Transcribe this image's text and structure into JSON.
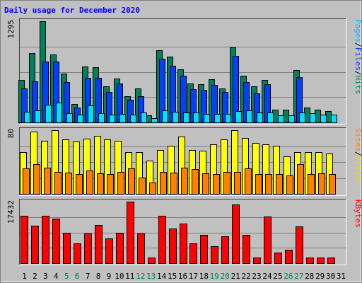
{
  "chart_data": {
    "type": "bar",
    "title": "Daily usage for December 2020",
    "days": [
      "1",
      "2",
      "3",
      "4",
      "5",
      "6",
      "7",
      "8",
      "9",
      "10",
      "11",
      "12",
      "13",
      "14",
      "15",
      "16",
      "17",
      "18",
      "19",
      "20",
      "21",
      "22",
      "23",
      "24",
      "25",
      "26",
      "27",
      "28",
      "29",
      "30",
      "31"
    ],
    "weekend_days": [
      "5",
      "6",
      "12",
      "13",
      "19",
      "20",
      "26",
      "27"
    ],
    "colors": {
      "hits": "#00805c",
      "files": "#0040ff",
      "pages": "#00e0ff",
      "visits": "#ffff00",
      "sites": "#ff8000",
      "kbytes": "#ff0000",
      "weekday_label": "#000000",
      "weekend_label": "#00805c",
      "title": "#0000ff"
    },
    "panels": [
      {
        "max_label": "1295",
        "ymax": 1295,
        "legend": [
          {
            "text": "Pages",
            "color": "#00c0ff"
          },
          {
            "text": "/",
            "color": "#000000"
          },
          {
            "text": "Files",
            "color": "#0040ff"
          },
          {
            "text": "/",
            "color": "#000000"
          },
          {
            "text": "Hits",
            "color": "#00805c"
          }
        ],
        "series": [
          {
            "name": "Hits",
            "key": "hits",
            "values": [
              543,
              885,
              1295,
              872,
              627,
              234,
              718,
              710,
              464,
              558,
              333,
              436,
              90,
              928,
              846,
              677,
              500,
              489,
              551,
              435,
              960,
              601,
              463,
              543,
              167,
              165,
              673,
              188,
              163,
              142,
              0
            ]
          },
          {
            "name": "Files",
            "key": "files",
            "values": [
              436,
              524,
              783,
              783,
              518,
              191,
              567,
              567,
              392,
              499,
              289,
              331,
              0,
              817,
              725,
              602,
              429,
              420,
              479,
              386,
              850,
              518,
              371,
              489,
              0,
              0,
              576,
              0,
              0,
              0,
              0
            ]
          },
          {
            "name": "Pages",
            "key": "pages",
            "values": [
              134,
              156,
              230,
              252,
              117,
              104,
              220,
              114,
              101,
              107,
              103,
              123,
              52,
              152,
              135,
              130,
              125,
              109,
              112,
              107,
              144,
              150,
              125,
              125,
              94,
              91,
              125,
              117,
              100,
              100,
              0
            ]
          }
        ]
      },
      {
        "max_label": "80",
        "ymax": 80,
        "legend": [
          {
            "text": "Sites",
            "color": "#ff8000"
          },
          {
            "text": "/",
            "color": "#000000"
          },
          {
            "text": "Visits",
            "color": "#e0e000"
          }
        ],
        "series": [
          {
            "name": "Visits",
            "key": "visits",
            "values": [
              52,
              78,
              67,
              80,
              68,
              66,
              69,
              73,
              68,
              67,
              52,
              52,
              42,
              55,
              60,
              72,
              55,
              54,
              62,
              68,
              80,
              70,
              64,
              62,
              60,
              47,
              52,
              52,
              52,
              51,
              0
            ]
          },
          {
            "name": "Sites",
            "key": "sites",
            "values": [
              32,
              37,
              33,
              28,
              27,
              25,
              29,
              26,
              25,
              28,
              32,
              20,
              14,
              28,
              27,
              33,
              31,
              26,
              25,
              28,
              28,
              32,
              25,
              25,
              25,
              23,
              37,
              25,
              26,
              25,
              0
            ]
          }
        ]
      },
      {
        "max_label": "17432",
        "ymax": 17432,
        "legend": [
          {
            "text": "KBytes",
            "color": "#ff0000"
          }
        ],
        "series": [
          {
            "name": "KBytes",
            "key": "kbytes",
            "values": [
              13370,
              10580,
              13330,
              12700,
              8710,
              5560,
              8440,
              10790,
              6990,
              8550,
              17432,
              8480,
              1610,
              13370,
              9830,
              11150,
              5660,
              7950,
              4740,
              7630,
              16560,
              7960,
              1620,
              13170,
              3030,
              3790,
              10470,
              1570,
              1520,
              1530,
              0
            ]
          }
        ]
      }
    ]
  }
}
